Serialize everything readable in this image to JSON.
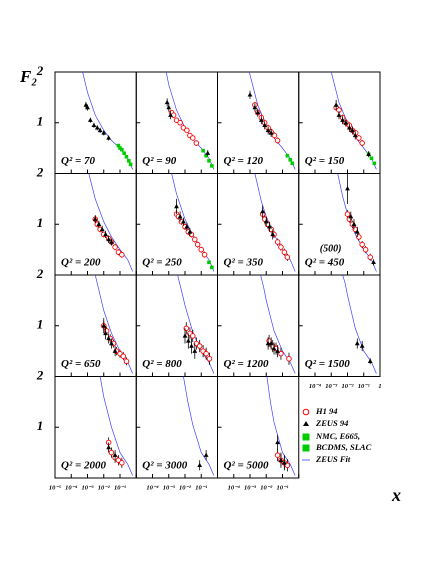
{
  "y_axis_label": "F₂",
  "x_axis_label": "x",
  "axes": {
    "xlim": [
      1e-05,
      1
    ],
    "ylim": [
      0,
      2
    ],
    "xlog": true,
    "xticks": [
      {
        "value": 1e-05,
        "label": "10⁻⁵"
      },
      {
        "value": 0.0001,
        "label": "10⁻⁴"
      },
      {
        "value": 0.001,
        "label": "10⁻³"
      },
      {
        "value": 0.01,
        "label": "10⁻²"
      },
      {
        "value": 0.1,
        "label": "10⁻¹"
      },
      1
    ],
    "yticks": [
      1,
      2
    ]
  },
  "legend": [
    {
      "name": "H1 94",
      "color": "#ff0000"
    },
    {
      "name": "ZEUS 94",
      "color": "#000000"
    },
    {
      "name": "NMC, E665,",
      "color": "#00cc00"
    },
    {
      "name": "BCDMS, SLAC",
      "color": "#00cc00"
    },
    {
      "name": "ZEUS Fit",
      "color": "#4040ff"
    }
  ],
  "chart_data": [
    {
      "type": "scatter",
      "title": "Q² = 70",
      "fit": {
        "x": [
          0.0005,
          0.001,
          0.003,
          0.01,
          0.03,
          0.1,
          0.3,
          0.6
        ],
        "values": [
          2,
          1.6,
          1.15,
          0.85,
          0.65,
          0.5,
          0.3,
          0.08
        ]
      },
      "zeus": {
        "x": [
          0.0008,
          0.001,
          0.0015,
          0.0025,
          0.004,
          0.006,
          0.01,
          0.02
        ],
        "values": [
          1.35,
          1.3,
          1.05,
          0.95,
          0.9,
          0.85,
          0.8,
          0.7
        ],
        "errors": [
          0.06,
          0.06,
          0.05,
          0.05,
          0.05,
          0.05,
          0.05,
          0.05
        ]
      },
      "fixed": {
        "x": [
          0.08,
          0.1,
          0.13,
          0.18,
          0.25,
          0.35,
          0.45
        ],
        "values": [
          0.55,
          0.5,
          0.47,
          0.4,
          0.33,
          0.25,
          0.18
        ]
      }
    },
    {
      "type": "scatter",
      "title": "Q² = 90",
      "fit": {
        "x": [
          0.0007,
          0.001,
          0.003,
          0.01,
          0.03,
          0.1,
          0.3,
          0.6
        ],
        "values": [
          2,
          1.75,
          1.25,
          0.9,
          0.67,
          0.5,
          0.3,
          0.08
        ]
      },
      "zeus": {
        "x": [
          0.0008,
          0.001,
          0.0013,
          0.25
        ],
        "values": [
          1.4,
          1.3,
          1.15,
          0.4
        ],
        "errors": [
          0.08,
          0.08,
          0.08,
          0.06
        ]
      },
      "h1": {
        "x": [
          0.0015,
          0.002,
          0.003,
          0.005,
          0.008,
          0.013,
          0.02,
          0.03,
          0.05
        ],
        "values": [
          1.2,
          1.15,
          1.05,
          1,
          0.9,
          0.85,
          0.75,
          0.7,
          0.6
        ],
        "errors": [
          0.05,
          0.05,
          0.05,
          0.05,
          0.05,
          0.05,
          0.05,
          0.05,
          0.05
        ]
      },
      "fixed": {
        "x": [
          0.13,
          0.2,
          0.3,
          0.45
        ],
        "values": [
          0.45,
          0.35,
          0.25,
          0.15
        ]
      }
    },
    {
      "type": "scatter",
      "title": "Q² = 120",
      "fit": {
        "x": [
          0.0009,
          0.003,
          0.01,
          0.03,
          0.1,
          0.3,
          0.6
        ],
        "values": [
          2,
          1.35,
          0.95,
          0.7,
          0.5,
          0.3,
          0.08
        ]
      },
      "zeus": {
        "x": [
          0.001,
          0.002,
          0.003,
          0.005,
          0.008,
          0.013,
          0.02
        ],
        "values": [
          1.55,
          1.3,
          1.2,
          1.05,
          0.95,
          0.85,
          0.8
        ],
        "errors": [
          0.08,
          0.08,
          0.08,
          0.08,
          0.08,
          0.08,
          0.08
        ]
      },
      "h1": {
        "x": [
          0.002,
          0.003,
          0.005,
          0.008,
          0.013,
          0.02,
          0.032,
          0.05
        ],
        "values": [
          1.35,
          1.2,
          1.1,
          1,
          0.9,
          0.82,
          0.75,
          0.65
        ],
        "errors": [
          0.06,
          0.06,
          0.06,
          0.06,
          0.06,
          0.06,
          0.06,
          0.06
        ]
      },
      "fixed": {
        "x": [
          0.2,
          0.3,
          0.4
        ],
        "values": [
          0.35,
          0.27,
          0.2
        ]
      }
    },
    {
      "type": "scatter",
      "title": "Q² = 150",
      "fit": {
        "x": [
          0.001,
          0.003,
          0.01,
          0.03,
          0.1,
          0.3,
          0.6
        ],
        "values": [
          2,
          1.4,
          1,
          0.72,
          0.5,
          0.3,
          0.08
        ]
      },
      "zeus": {
        "x": [
          0.002,
          0.003,
          0.005,
          0.008,
          0.013,
          0.02,
          0.03,
          0.2
        ],
        "values": [
          1.35,
          1.15,
          1.05,
          1,
          0.9,
          0.85,
          0.75,
          0.38
        ],
        "errors": [
          0.1,
          0.08,
          0.08,
          0.08,
          0.08,
          0.08,
          0.08,
          0.06
        ]
      },
      "h1": {
        "x": [
          0.002,
          0.003,
          0.005,
          0.008,
          0.013,
          0.02,
          0.032,
          0.05,
          0.08
        ],
        "values": [
          1.3,
          1.25,
          1.1,
          1,
          0.95,
          0.85,
          0.8,
          0.7,
          0.6
        ],
        "errors": [
          0.06,
          0.06,
          0.06,
          0.06,
          0.06,
          0.06,
          0.06,
          0.06,
          0.06
        ]
      },
      "fixed": {
        "x": [
          0.2,
          0.3,
          0.45
        ],
        "values": [
          0.38,
          0.3,
          0.2
        ]
      }
    },
    {
      "type": "scatter",
      "title": "Q² = 200",
      "fit": {
        "x": [
          0.0012,
          0.003,
          0.01,
          0.03,
          0.1,
          0.3,
          0.6
        ],
        "values": [
          2,
          1.5,
          1.05,
          0.75,
          0.5,
          0.3,
          0.07
        ]
      },
      "zeus": {
        "x": [
          0.003,
          0.005,
          0.008,
          0.013,
          0.02,
          0.03
        ],
        "values": [
          1.1,
          1,
          0.9,
          0.8,
          0.7,
          0.65
        ],
        "errors": [
          0.08,
          0.07,
          0.07,
          0.07,
          0.07,
          0.07
        ]
      },
      "h1": {
        "x": [
          0.003,
          0.004,
          0.006,
          0.01,
          0.02,
          0.03,
          0.05,
          0.08,
          0.13
        ],
        "values": [
          1.1,
          1,
          0.9,
          0.8,
          0.72,
          0.65,
          0.55,
          0.45,
          0.4
        ],
        "errors": [
          0.06,
          0.06,
          0.06,
          0.06,
          0.06,
          0.06,
          0.06,
          0.06,
          0.06
        ]
      }
    },
    {
      "type": "scatter",
      "title": "Q² = 250",
      "fit": {
        "x": [
          0.0015,
          0.003,
          0.01,
          0.03,
          0.1,
          0.3,
          0.6
        ],
        "values": [
          2,
          1.6,
          1.1,
          0.78,
          0.5,
          0.3,
          0.07
        ]
      },
      "zeus": {
        "x": [
          0.003,
          0.005,
          0.008,
          0.013,
          0.02
        ],
        "values": [
          1.35,
          1.15,
          1.05,
          0.95,
          0.85
        ],
        "errors": [
          0.15,
          0.1,
          0.08,
          0.08,
          0.08
        ]
      },
      "h1": {
        "x": [
          0.003,
          0.004,
          0.006,
          0.01,
          0.016,
          0.025,
          0.04,
          0.06,
          0.1,
          0.16
        ],
        "values": [
          1.2,
          1.15,
          1.05,
          0.95,
          0.85,
          0.8,
          0.7,
          0.6,
          0.5,
          0.4
        ],
        "errors": [
          0.07,
          0.06,
          0.06,
          0.06,
          0.06,
          0.06,
          0.06,
          0.06,
          0.06,
          0.06
        ]
      },
      "fixed": {
        "x": [
          0.3,
          0.45
        ],
        "values": [
          0.25,
          0.15
        ]
      }
    },
    {
      "type": "scatter",
      "title": "Q² = 350",
      "fit": {
        "x": [
          0.002,
          0.005,
          0.01,
          0.03,
          0.1,
          0.3,
          0.6
        ],
        "values": [
          2,
          1.45,
          1.15,
          0.8,
          0.5,
          0.3,
          0.07
        ]
      },
      "zeus": {
        "x": [
          0.006,
          0.01,
          0.016,
          0.025
        ],
        "values": [
          1.25,
          1.05,
          0.95,
          0.8
        ],
        "errors": [
          0.12,
          0.1,
          0.1,
          0.1
        ]
      },
      "h1": {
        "x": [
          0.006,
          0.008,
          0.012,
          0.02,
          0.03,
          0.05,
          0.08,
          0.13,
          0.2
        ],
        "values": [
          1.2,
          1.1,
          1,
          0.9,
          0.8,
          0.65,
          0.55,
          0.45,
          0.35
        ],
        "errors": [
          0.08,
          0.07,
          0.07,
          0.07,
          0.07,
          0.07,
          0.07,
          0.07,
          0.07
        ]
      }
    },
    {
      "type": "scatter",
      "title": "Q² = 450",
      "annotation": "(500)",
      "fit": {
        "x": [
          0.0025,
          0.005,
          0.01,
          0.03,
          0.1,
          0.3,
          0.6
        ],
        "values": [
          2,
          1.55,
          1.2,
          0.8,
          0.5,
          0.3,
          0.07
        ]
      },
      "zeus": {
        "x": [
          0.01,
          0.016,
          0.025,
          0.04,
          0.4
        ],
        "values": [
          1.7,
          1.15,
          1,
          0.85,
          0.25
        ],
        "errors": [
          0.3,
          0.1,
          0.1,
          0.1,
          0.06
        ]
      },
      "h1": {
        "x": [
          0.01,
          0.013,
          0.02,
          0.03,
          0.05,
          0.08,
          0.13,
          0.25
        ],
        "values": [
          1.2,
          1.1,
          1,
          0.9,
          0.75,
          0.6,
          0.5,
          0.35
        ],
        "errors": [
          0.08,
          0.07,
          0.07,
          0.07,
          0.07,
          0.07,
          0.07,
          0.07
        ]
      }
    },
    {
      "type": "scatter",
      "title": "Q² = 650",
      "fit": {
        "x": [
          0.003,
          0.006,
          0.01,
          0.03,
          0.1,
          0.3,
          0.6
        ],
        "values": [
          2,
          1.6,
          1.3,
          0.85,
          0.5,
          0.28,
          0.06
        ]
      },
      "zeus": {
        "x": [
          0.01,
          0.013,
          0.02,
          0.03,
          0.05
        ],
        "values": [
          1,
          0.85,
          0.75,
          0.65,
          0.5
        ],
        "errors": [
          0.15,
          0.12,
          0.1,
          0.1,
          0.1
        ]
      },
      "h1": {
        "x": [
          0.01,
          0.015,
          0.025,
          0.04,
          0.06,
          0.1,
          0.16,
          0.25
        ],
        "values": [
          1,
          0.9,
          0.75,
          0.65,
          0.5,
          0.45,
          0.4,
          0.3
        ],
        "errors": [
          0.1,
          0.08,
          0.08,
          0.08,
          0.08,
          0.08,
          0.08,
          0.08
        ]
      }
    },
    {
      "type": "scatter",
      "title": "Q² = 800",
      "fit": {
        "x": [
          0.0035,
          0.006,
          0.01,
          0.03,
          0.1,
          0.3,
          0.6
        ],
        "values": [
          2,
          1.7,
          1.4,
          0.88,
          0.5,
          0.28,
          0.06
        ]
      },
      "zeus": {
        "x": [
          0.01,
          0.016,
          0.025,
          0.04
        ],
        "values": [
          0.8,
          0.7,
          0.6,
          0.5
        ],
        "errors": [
          0.15,
          0.15,
          0.15,
          0.15
        ]
      },
      "h1": {
        "x": [
          0.012,
          0.02,
          0.03,
          0.05,
          0.08,
          0.13,
          0.2,
          0.32
        ],
        "values": [
          0.95,
          0.85,
          0.8,
          0.65,
          0.6,
          0.5,
          0.45,
          0.35
        ],
        "errors": [
          0.12,
          0.12,
          0.12,
          0.12,
          0.12,
          0.12,
          0.12,
          0.12
        ]
      }
    },
    {
      "type": "scatter",
      "title": "Q² = 1200",
      "fit": {
        "x": [
          0.0045,
          0.007,
          0.01,
          0.03,
          0.1,
          0.3,
          0.6
        ],
        "values": [
          2,
          1.75,
          1.5,
          0.9,
          0.5,
          0.28,
          0.06
        ]
      },
      "zeus": {
        "x": [
          0.013,
          0.02,
          0.03,
          0.05
        ],
        "values": [
          0.65,
          0.65,
          0.55,
          0.5
        ],
        "errors": [
          0.12,
          0.12,
          0.12,
          0.12
        ]
      },
      "h1": {
        "x": [
          0.015,
          0.025,
          0.04,
          0.08,
          0.25
        ],
        "values": [
          0.7,
          0.6,
          0.55,
          0.45,
          0.35
        ],
        "errors": [
          0.12,
          0.12,
          0.12,
          0.12,
          0.12
        ]
      }
    },
    {
      "type": "scatter",
      "title": "Q² = 1500",
      "fit": {
        "x": [
          0.005,
          0.007,
          0.01,
          0.03,
          0.1,
          0.3,
          0.6
        ],
        "values": [
          2,
          1.85,
          1.6,
          0.95,
          0.5,
          0.28,
          0.06
        ]
      },
      "zeus": {
        "x": [
          0.04,
          0.08,
          0.25
        ],
        "values": [
          0.65,
          0.6,
          0.3
        ],
        "errors": [
          0.1,
          0.1,
          0.06
        ]
      }
    },
    {
      "type": "scatter",
      "title": "Q² = 2000",
      "fit": {
        "x": [
          0.006,
          0.01,
          0.03,
          0.1,
          0.3,
          0.6
        ],
        "values": [
          2,
          1.6,
          1,
          0.5,
          0.27,
          0.05
        ]
      },
      "zeus": {
        "x": [
          0.02,
          0.05
        ],
        "values": [
          0.6,
          0.45
        ],
        "errors": [
          0.1,
          0.1
        ]
      },
      "h1": {
        "x": [
          0.02,
          0.03,
          0.05,
          0.08,
          0.13
        ],
        "values": [
          0.7,
          0.5,
          0.4,
          0.35,
          0.3
        ],
        "errors": [
          0.1,
          0.1,
          0.1,
          0.1,
          0.1
        ]
      }
    },
    {
      "type": "scatter",
      "title": "Q² = 3000",
      "fit": {
        "x": [
          0.008,
          0.015,
          0.03,
          0.1,
          0.3,
          0.6
        ],
        "values": [
          2,
          1.5,
          1.05,
          0.5,
          0.27,
          0.05
        ]
      },
      "zeus": {
        "x": [
          0.08,
          0.2
        ],
        "values": [
          0.25,
          0.45
        ],
        "errors": [
          0.1,
          0.1
        ]
      }
    },
    {
      "type": "scatter",
      "title": "Q² = 5000",
      "fit": {
        "x": [
          0.011,
          0.018,
          0.03,
          0.1,
          0.3,
          0.6
        ],
        "values": [
          2,
          1.5,
          1.1,
          0.5,
          0.27,
          0.05
        ]
      },
      "zeus": {
        "x": [
          0.05,
          0.08,
          0.13
        ],
        "values": [
          0.7,
          0.35,
          0.3
        ],
        "errors": [
          0.15,
          0.15,
          0.15
        ]
      },
      "h1": {
        "x": [
          0.05,
          0.08,
          0.13,
          0.2
        ],
        "values": [
          0.45,
          0.35,
          0.3,
          0.25
        ],
        "errors": [
          0.12,
          0.12,
          0.12,
          0.12
        ]
      }
    }
  ]
}
